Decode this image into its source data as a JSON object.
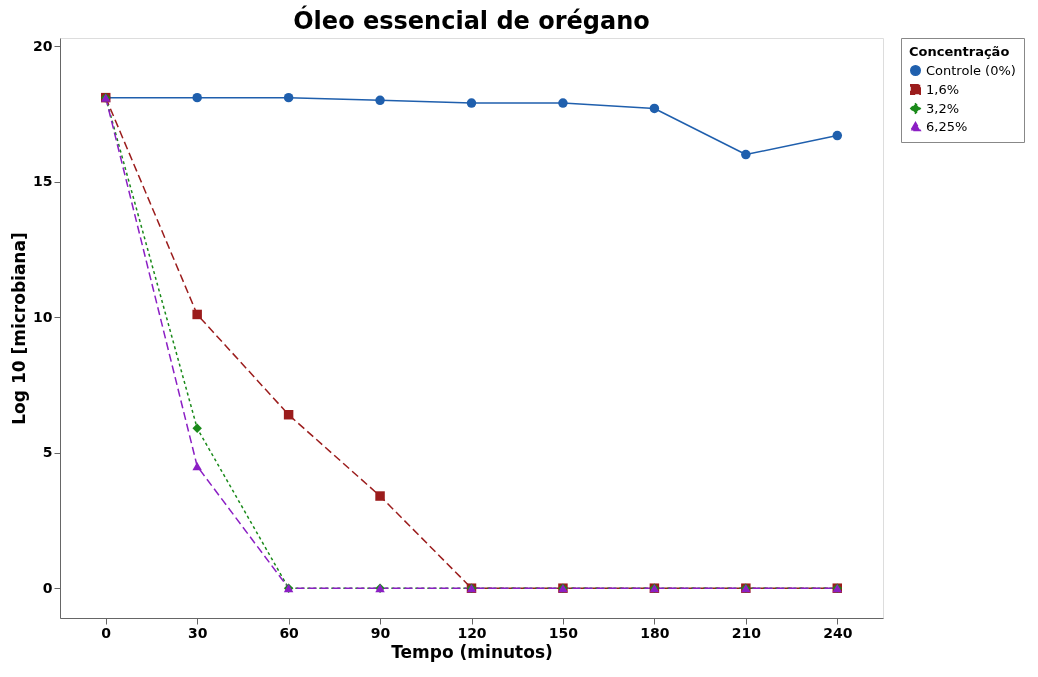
{
  "chart_data": {
    "type": "line",
    "title": "Óleo essencial de orégano",
    "xlabel": "Tempo (minutos)",
    "ylabel": "Log 10 [microbiana]",
    "legend_title": "Concentração",
    "legend": "top right",
    "grid": false,
    "x": [
      0,
      30,
      60,
      90,
      120,
      150,
      180,
      210,
      240
    ],
    "series": [
      {
        "name": "Controle (0%)",
        "color": "#1f5fad",
        "marker": "circle",
        "line_style": "solid",
        "values": [
          18.1,
          18.1,
          18.1,
          18.0,
          17.9,
          17.9,
          17.7,
          16.0,
          16.7
        ]
      },
      {
        "name": "1,6%",
        "color": "#9b1c1c",
        "marker": "square",
        "line_style": "dashed",
        "values": [
          18.1,
          10.1,
          6.4,
          3.4,
          0,
          0,
          0,
          0,
          0
        ]
      },
      {
        "name": "3,2%",
        "color": "#1a8a1a",
        "marker": "diamond",
        "line_style": "dotted",
        "values": [
          18.1,
          5.9,
          0,
          0,
          0,
          0,
          0,
          0,
          0
        ]
      },
      {
        "name": "6,25%",
        "color": "#8b1fc4",
        "marker": "triangle",
        "line_style": "dashed",
        "values": [
          18.1,
          4.5,
          0,
          0,
          0,
          0,
          0,
          0,
          0
        ]
      }
    ],
    "xlim": [
      -15,
      255
    ],
    "xticks": [
      0,
      30,
      60,
      90,
      120,
      150,
      180,
      210,
      240
    ],
    "ylim": [
      -1.1,
      20.3
    ],
    "yticks": [
      0,
      5,
      10,
      15,
      20
    ]
  }
}
